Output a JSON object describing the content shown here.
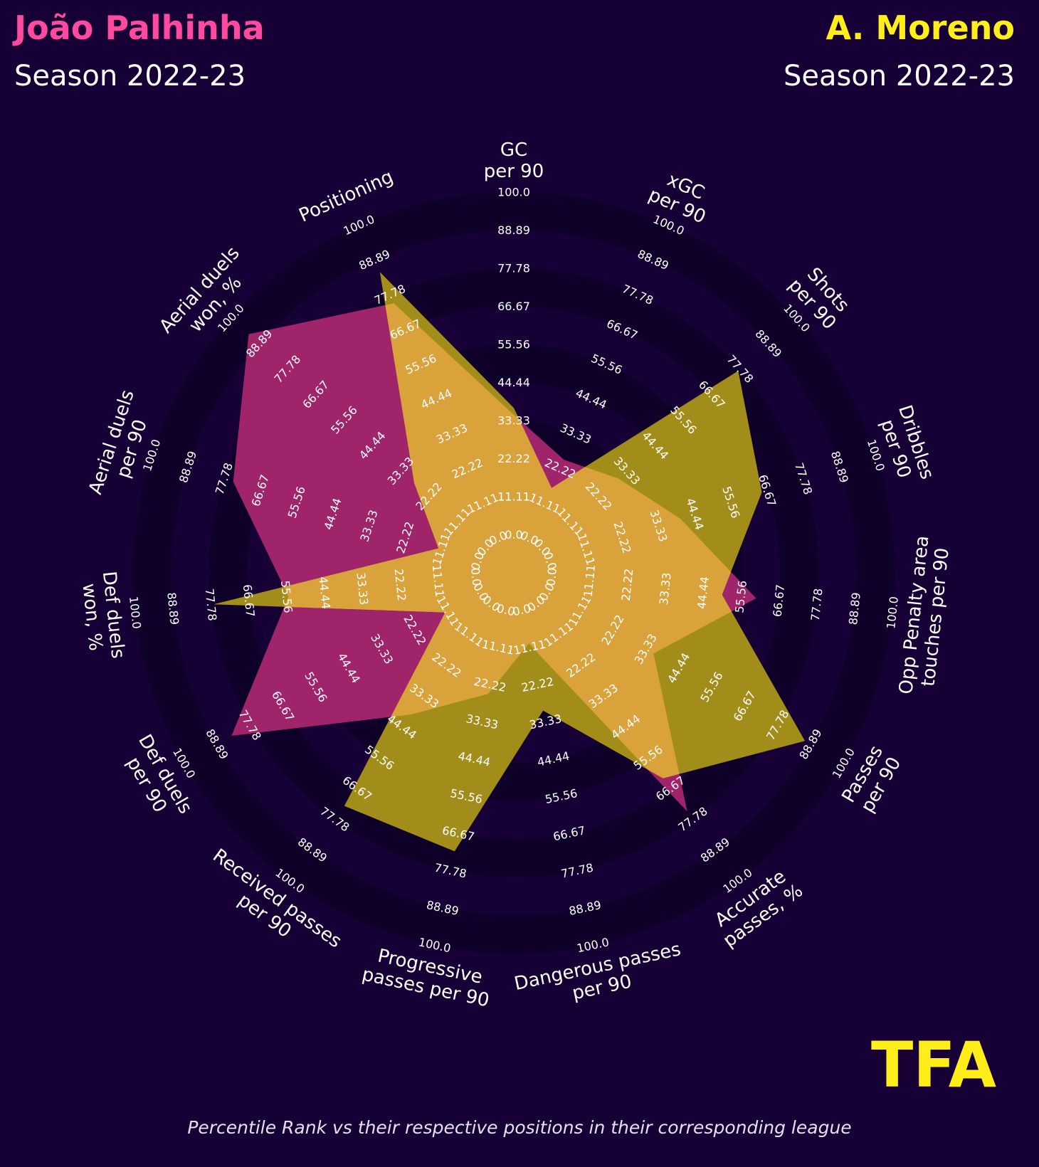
{
  "header": {
    "player1": "João Palhinha",
    "player1_season": "Season 2022-23",
    "player2": "A. Moreno",
    "player2_season": "Season 2022-23"
  },
  "footnote": "Percentile Rank vs their respective positions in their corresponding league",
  "logo_text": "TFA",
  "colors": {
    "background": "#160035",
    "player1": "#ff4aa0",
    "player2": "#ffee1a",
    "player1_fill": "#a0246a",
    "player2_fill": "#a38d1a",
    "overlap_fill": "#d9a23a",
    "ring_dark": "#0f0029"
  },
  "chart_data": {
    "type": "radar",
    "rlim": [
      0,
      100
    ],
    "ring_labels": [
      "0.0",
      "11.11",
      "22.22",
      "33.33",
      "44.44",
      "55.56",
      "66.67",
      "77.78",
      "88.89",
      "100.0"
    ],
    "categories": [
      [
        "GC",
        "per 90"
      ],
      [
        "xGC",
        "per 90"
      ],
      [
        "Shots",
        "per 90"
      ],
      [
        "Dribbles",
        "per 90"
      ],
      [
        "Opp Penalty area",
        "touches per 90"
      ],
      [
        "Passes",
        "per 90"
      ],
      [
        "Accurate",
        "passes, %"
      ],
      [
        "Dangerous passes",
        "per 90"
      ],
      [
        "Progressive",
        "passes per 90"
      ],
      [
        "Received passes",
        "per 90"
      ],
      [
        "Def duels",
        "per 90"
      ],
      [
        "Def duels",
        "won, %"
      ],
      [
        "Aerial duels",
        "per 90"
      ],
      [
        "Aerial duels",
        "won, %"
      ],
      [
        "Positioning"
      ]
    ],
    "series": [
      {
        "name": "João Palhinha",
        "values": [
          35,
          25,
          30,
          40,
          60,
          36,
          75,
          10,
          25,
          40,
          84,
          55,
          75,
          93,
          75
        ]
      },
      {
        "name": "A. Moreno",
        "values": [
          37,
          16,
          77,
          65,
          50,
          87,
          63,
          30,
          72,
          73,
          12,
          77,
          12,
          28,
          85
        ]
      }
    ]
  }
}
